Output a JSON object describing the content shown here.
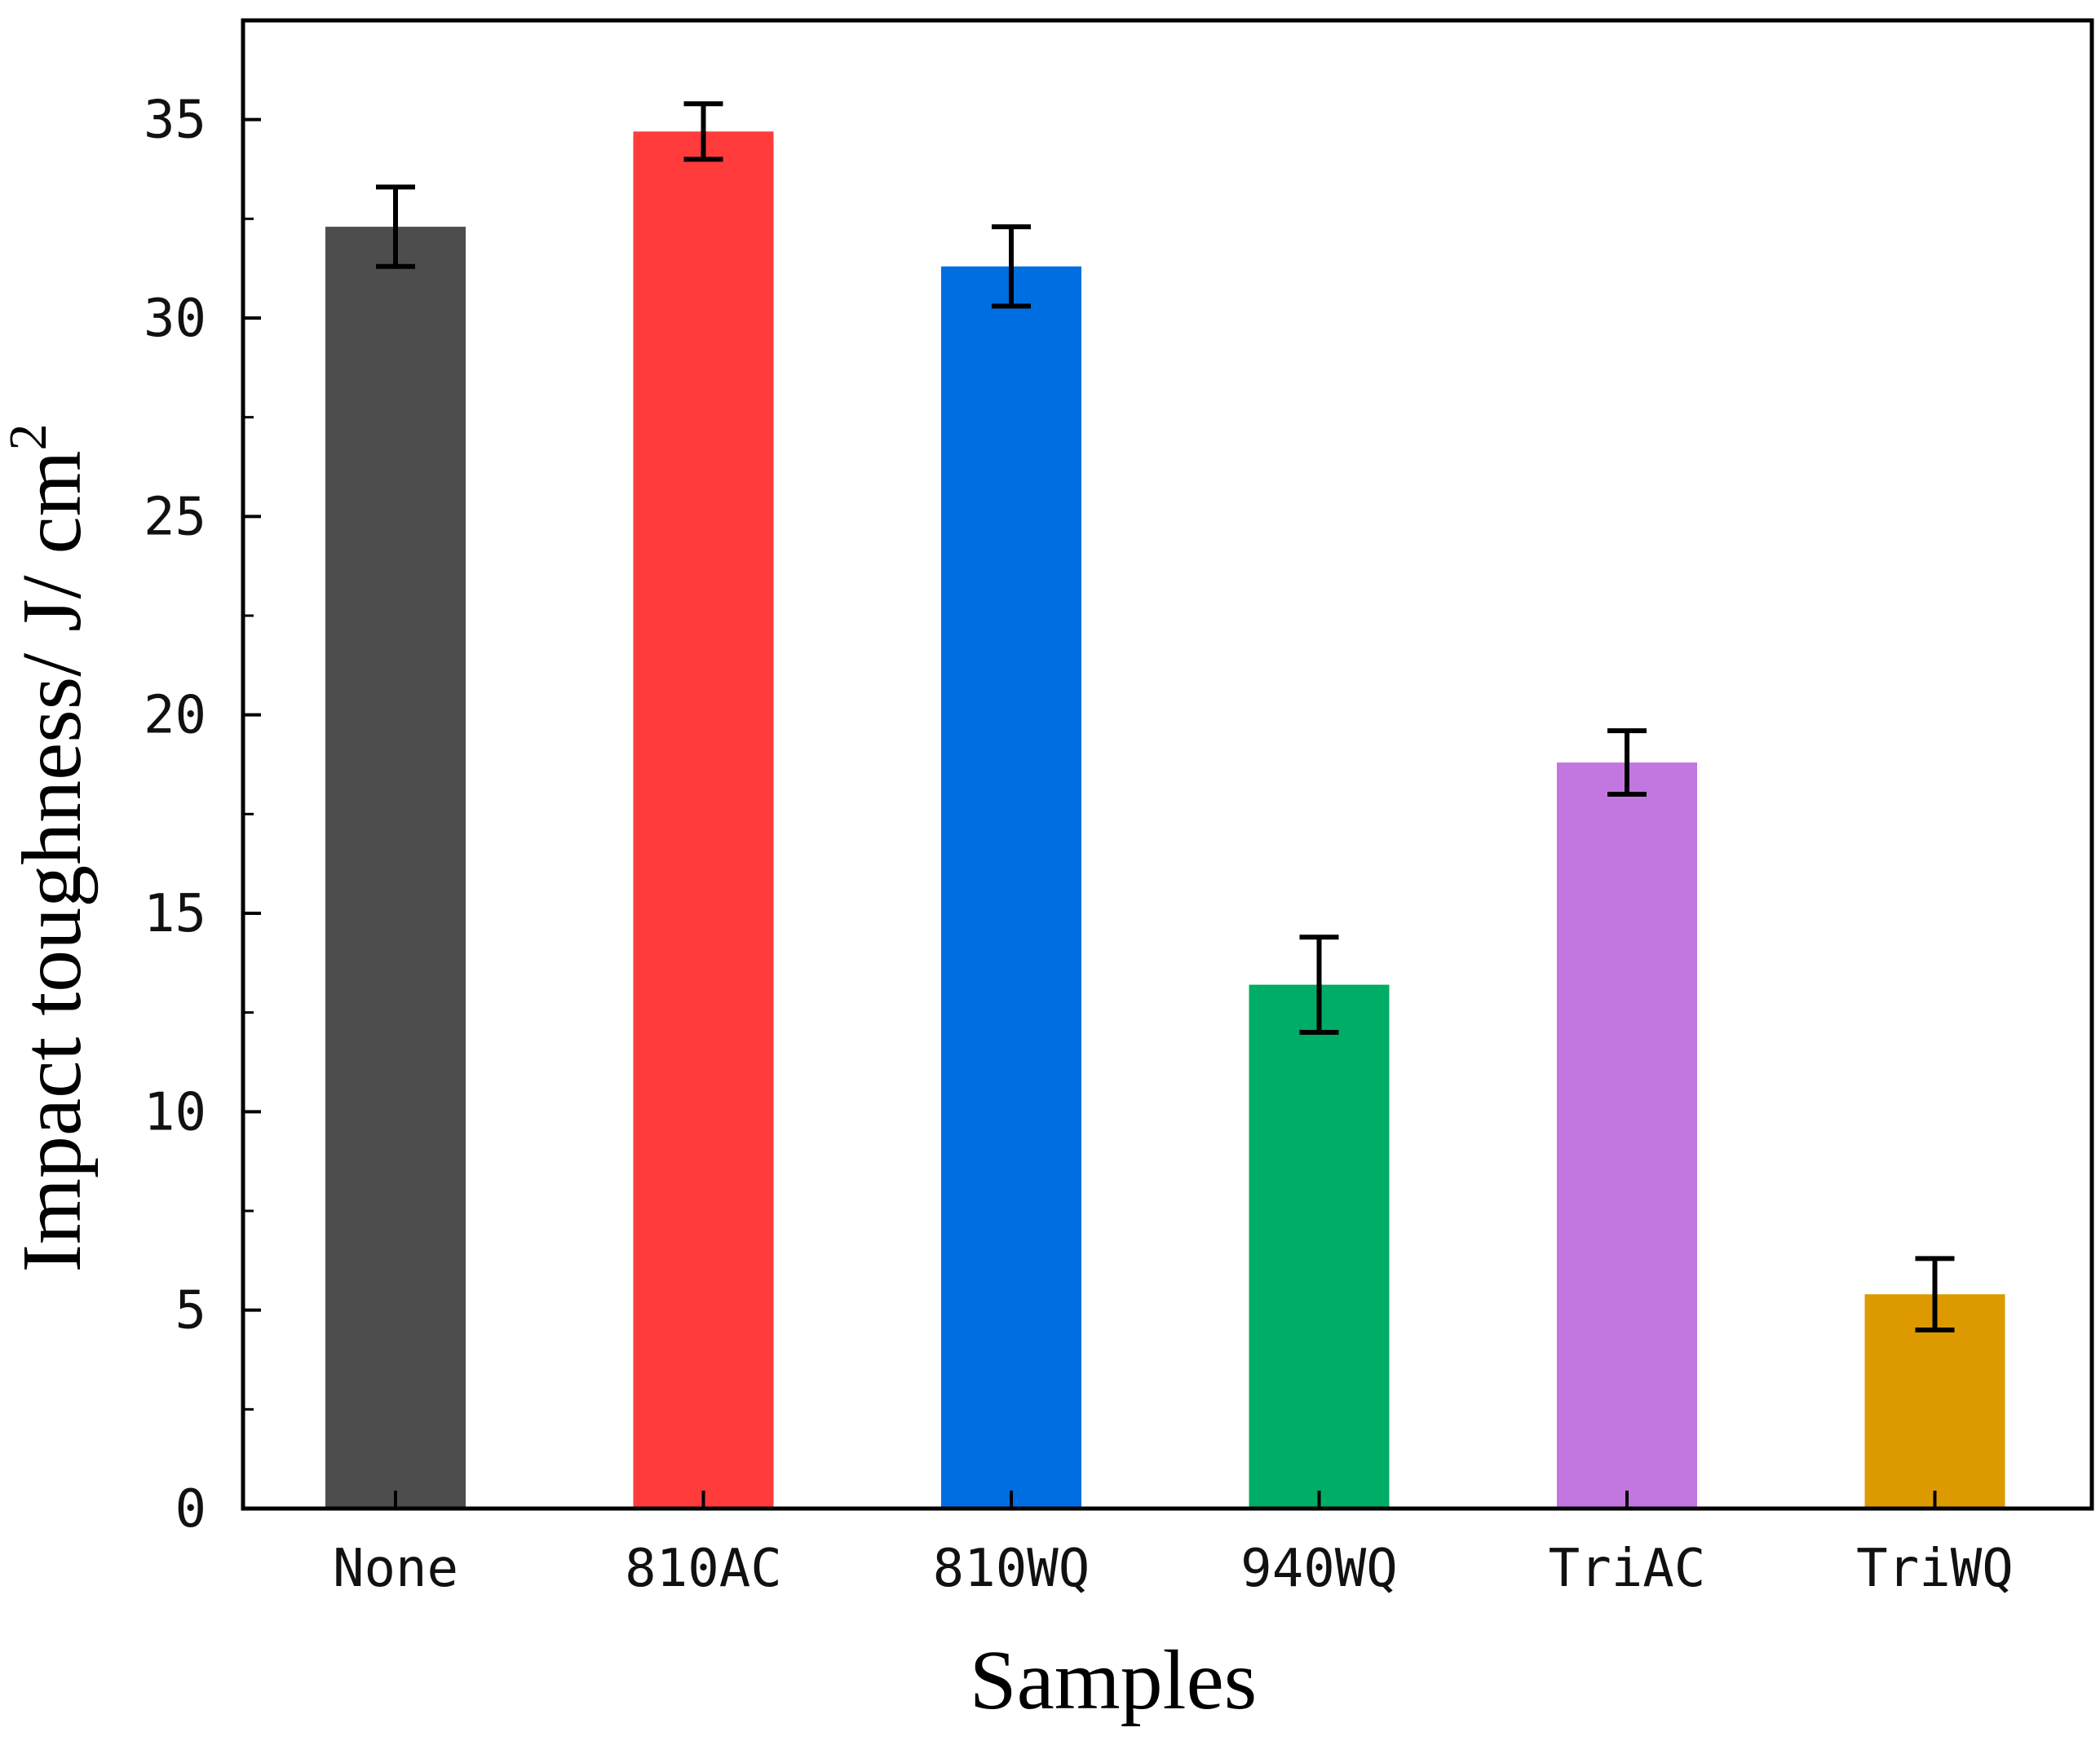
{
  "chart_data": {
    "type": "bar",
    "title": "",
    "xlabel": "Samples",
    "ylabel": "Impact toughness/ J/ cm",
    "ylabel_superscript": "2",
    "categories": [
      "None",
      "810AC",
      "810WQ",
      "940WQ",
      "TriAC",
      "TriWQ"
    ],
    "values": [
      32.3,
      34.7,
      31.3,
      13.2,
      18.8,
      5.4
    ],
    "errors": [
      1.0,
      0.7,
      1.0,
      1.2,
      0.8,
      0.9
    ],
    "colors": [
      "#4d4d4d",
      "#ff3b3b",
      "#006ee0",
      "#00ad66",
      "#c277e0",
      "#dd9a00"
    ],
    "ylim": [
      0,
      37.5
    ],
    "yticks": [
      0,
      5,
      10,
      15,
      20,
      25,
      30,
      35
    ],
    "ytick_labels": [
      "0",
      "5",
      "10",
      "15",
      "20",
      "25",
      "30",
      "35"
    ],
    "grid": false,
    "legend": "none"
  }
}
